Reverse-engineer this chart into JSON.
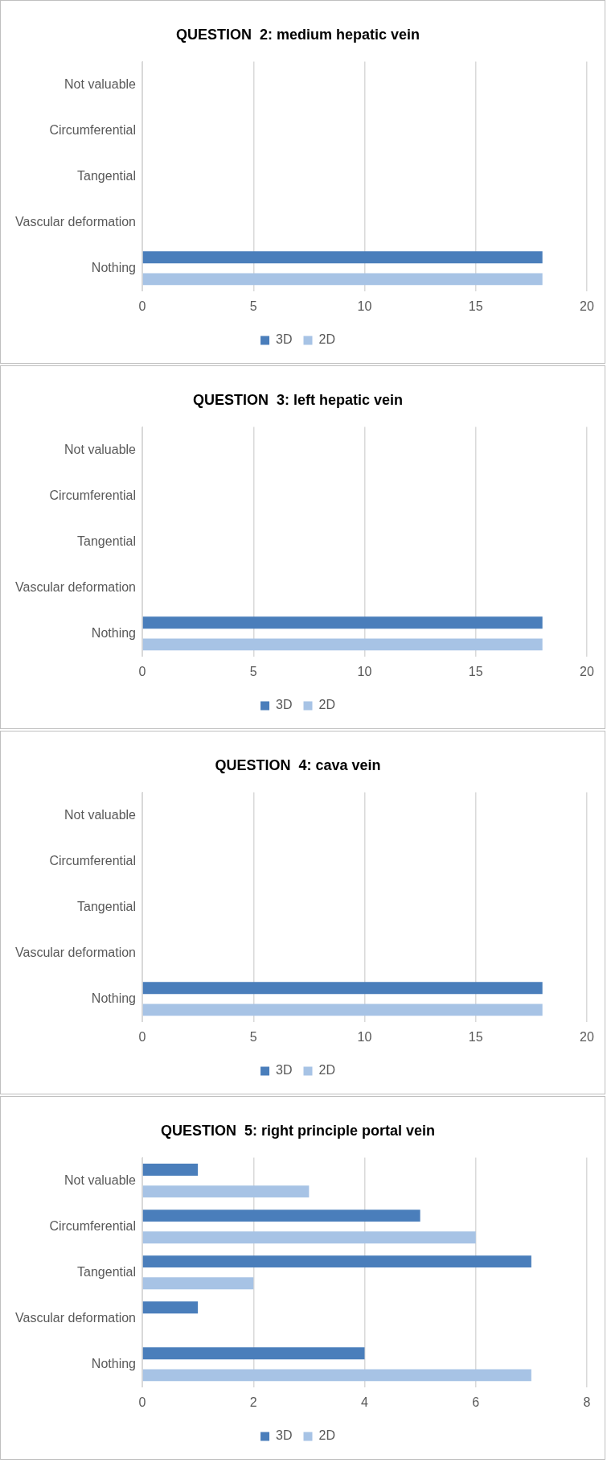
{
  "chart_data": [
    {
      "type": "bar",
      "orientation": "horizontal",
      "title": "QUESTION  2: medium hepatic vein",
      "categories": [
        "Not valuable",
        "Circumferential",
        "Tangential",
        "Vascular deformation",
        "Nothing"
      ],
      "series": [
        {
          "name": "3D",
          "color": "#4a7ebb",
          "values": [
            0,
            0,
            0,
            0,
            18
          ]
        },
        {
          "name": "2D",
          "color": "#a7c3e5",
          "values": [
            0,
            0,
            0,
            0,
            18
          ]
        }
      ],
      "xlim": [
        0,
        20
      ],
      "xticks": [
        0,
        5,
        10,
        15,
        20
      ],
      "grid": "x",
      "legend": "bottom"
    },
    {
      "type": "bar",
      "orientation": "horizontal",
      "title": "QUESTION  3: left hepatic vein",
      "categories": [
        "Not valuable",
        "Circumferential",
        "Tangential",
        "Vascular deformation",
        "Nothing"
      ],
      "series": [
        {
          "name": "3D",
          "color": "#4a7ebb",
          "values": [
            0,
            0,
            0,
            0,
            18
          ]
        },
        {
          "name": "2D",
          "color": "#a7c3e5",
          "values": [
            0,
            0,
            0,
            0,
            18
          ]
        }
      ],
      "xlim": [
        0,
        20
      ],
      "xticks": [
        0,
        5,
        10,
        15,
        20
      ],
      "grid": "x",
      "legend": "bottom"
    },
    {
      "type": "bar",
      "orientation": "horizontal",
      "title": "QUESTION  4: cava vein",
      "categories": [
        "Not valuable",
        "Circumferential",
        "Tangential",
        "Vascular deformation",
        "Nothing"
      ],
      "series": [
        {
          "name": "3D",
          "color": "#4a7ebb",
          "values": [
            0,
            0,
            0,
            0,
            18
          ]
        },
        {
          "name": "2D",
          "color": "#a7c3e5",
          "values": [
            0,
            0,
            0,
            0,
            18
          ]
        }
      ],
      "xlim": [
        0,
        20
      ],
      "xticks": [
        0,
        5,
        10,
        15,
        20
      ],
      "grid": "x",
      "legend": "bottom"
    },
    {
      "type": "bar",
      "orientation": "horizontal",
      "title": "QUESTION  5: right principle portal vein",
      "categories": [
        "Not valuable",
        "Circumferential",
        "Tangential",
        "Vascular deformation",
        "Nothing"
      ],
      "series": [
        {
          "name": "3D",
          "color": "#4a7ebb",
          "values": [
            1,
            5,
            7,
            1,
            4
          ]
        },
        {
          "name": "2D",
          "color": "#a7c3e5",
          "values": [
            3,
            6,
            2,
            0,
            7
          ]
        }
      ],
      "xlim": [
        0,
        8
      ],
      "xticks": [
        0,
        2,
        4,
        6,
        8
      ],
      "grid": "x",
      "legend": "bottom"
    }
  ]
}
